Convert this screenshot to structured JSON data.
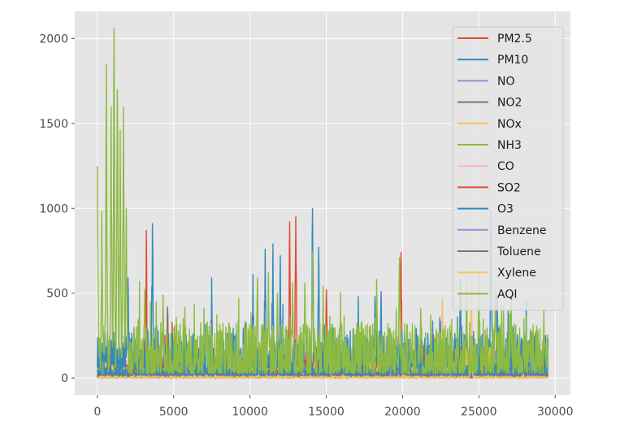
{
  "chart_data": {
    "type": "line",
    "title": "",
    "xlabel": "",
    "ylabel": "",
    "xlim": [
      -1480,
      31000
    ],
    "ylim": [
      -100,
      2160
    ],
    "x_ticks": [
      0,
      5000,
      10000,
      15000,
      20000,
      25000,
      30000
    ],
    "y_ticks": [
      0,
      500,
      1000,
      1500,
      2000
    ],
    "x_tick_labels": [
      "0",
      "5000",
      "10000",
      "15000",
      "20000",
      "25000",
      "30000"
    ],
    "y_tick_labels": [
      "0",
      "500",
      "1000",
      "1500",
      "2000"
    ],
    "grid": true,
    "legend_position": "top-right",
    "x_max": 29531,
    "series": [
      {
        "name": "PM2.5",
        "color": "#e24a33",
        "base": 60,
        "var": 70,
        "spikes": [
          [
            3200,
            870
          ],
          [
            12600,
            920
          ],
          [
            13000,
            950
          ],
          [
            19900,
            740
          ],
          [
            15000,
            520
          ],
          [
            4900,
            330
          ],
          [
            22800,
            200
          ]
        ]
      },
      {
        "name": "PM10",
        "color": "#348abd",
        "base": 100,
        "var": 120,
        "spikes": [
          [
            3600,
            910
          ],
          [
            7500,
            590
          ],
          [
            10200,
            610
          ],
          [
            11000,
            760
          ],
          [
            11500,
            790
          ],
          [
            12000,
            720
          ],
          [
            14100,
            1000
          ],
          [
            14500,
            770
          ],
          [
            17100,
            480
          ],
          [
            18600,
            510
          ],
          [
            18200,
            480
          ],
          [
            23800,
            580
          ],
          [
            25800,
            990
          ],
          [
            26200,
            490
          ],
          [
            4300,
            360
          ],
          [
            2000,
            590
          ]
        ]
      },
      {
        "name": "NO",
        "color": "#988ed5",
        "base": 10,
        "var": 20,
        "spikes": [
          [
            1000,
            60
          ],
          [
            8000,
            50
          ],
          [
            20000,
            40
          ]
        ]
      },
      {
        "name": "NO2",
        "color": "#777777",
        "base": 25,
        "var": 25,
        "spikes": [
          [
            4600,
            420
          ],
          [
            1500,
            80
          ],
          [
            25500,
            60
          ]
        ]
      },
      {
        "name": "NOx",
        "color": "#fbc15e",
        "base": 20,
        "var": 30,
        "spikes": [
          [
            22600,
            470
          ],
          [
            22200,
            150
          ],
          [
            23200,
            210
          ],
          [
            24200,
            170
          ],
          [
            25700,
            180
          ]
        ]
      },
      {
        "name": "NH3",
        "color": "#8eba42",
        "base": 25,
        "var": 25,
        "spikes": [
          [
            1200,
            90
          ],
          [
            26000,
            80
          ]
        ]
      },
      {
        "name": "CO",
        "color": "#ffb5b8",
        "base": 5,
        "var": 15,
        "spikes": [
          [
            600,
            80
          ],
          [
            5000,
            40
          ]
        ]
      },
      {
        "name": "SO2",
        "color": "#e24a33",
        "base": 12,
        "var": 15,
        "spikes": [
          [
            800,
            110
          ],
          [
            2400,
            60
          ]
        ]
      },
      {
        "name": "O3",
        "color": "#348abd",
        "base": 30,
        "var": 35,
        "spikes": [
          [
            9000,
            120
          ],
          [
            16000,
            110
          ]
        ]
      },
      {
        "name": "Benzene",
        "color": "#988ed5",
        "base": 2,
        "var": 5,
        "spikes": []
      },
      {
        "name": "Toluene",
        "color": "#777777",
        "base": 6,
        "var": 10,
        "spikes": [
          [
            27000,
            30
          ]
        ]
      },
      {
        "name": "Xylene",
        "color": "#fbc15e",
        "base": 2,
        "var": 6,
        "spikes": [
          [
            24500,
            650
          ]
        ]
      },
      {
        "name": "AQI",
        "color": "#8eba42",
        "base": 110,
        "var": 150,
        "spikes": [
          [
            0,
            1250
          ],
          [
            300,
            980
          ],
          [
            600,
            1850
          ],
          [
            900,
            1600
          ],
          [
            1100,
            2060
          ],
          [
            1300,
            1700
          ],
          [
            1500,
            1460
          ],
          [
            1700,
            1600
          ],
          [
            1900,
            1000
          ],
          [
            2400,
            300
          ],
          [
            3100,
            520
          ],
          [
            4300,
            490
          ],
          [
            5700,
            260
          ],
          [
            7200,
            330
          ],
          [
            10500,
            590
          ],
          [
            11200,
            620
          ],
          [
            11800,
            500
          ],
          [
            12800,
            560
          ],
          [
            13600,
            560
          ],
          [
            14100,
            740
          ],
          [
            14800,
            540
          ],
          [
            18300,
            580
          ],
          [
            19800,
            710
          ],
          [
            21200,
            410
          ],
          [
            24200,
            570
          ],
          [
            25000,
            630
          ],
          [
            26100,
            560
          ],
          [
            27100,
            480
          ],
          [
            28300,
            200
          ],
          [
            29300,
            250
          ]
        ]
      }
    ]
  }
}
